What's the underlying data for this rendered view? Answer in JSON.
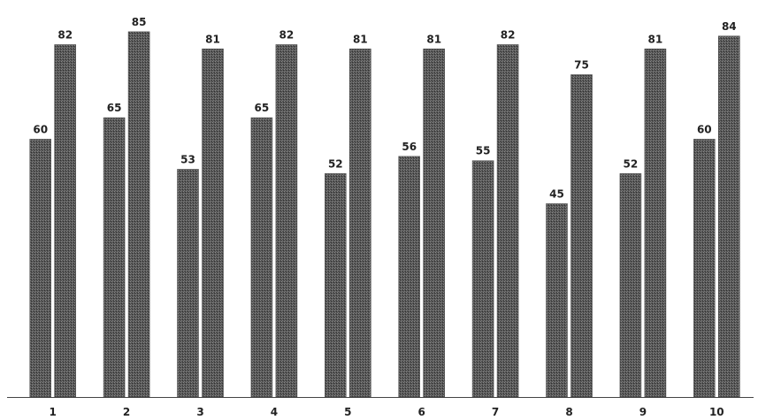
{
  "chart_data": {
    "type": "bar",
    "title": "",
    "xlabel": "",
    "ylabel": "",
    "categories": [
      "1",
      "2",
      "3",
      "4",
      "5",
      "6",
      "7",
      "8",
      "9",
      "10"
    ],
    "series": [
      {
        "values": [
          60,
          65,
          53,
          65,
          52,
          56,
          55,
          45,
          52,
          60
        ],
        "color": "#5c5c5c"
      },
      {
        "values": [
          82,
          85,
          81,
          82,
          81,
          81,
          82,
          75,
          81,
          84
        ],
        "color": "#4a4a4a"
      }
    ],
    "ylim": [
      0,
      90
    ],
    "grid": false,
    "legend": "none",
    "data_labels": true
  }
}
